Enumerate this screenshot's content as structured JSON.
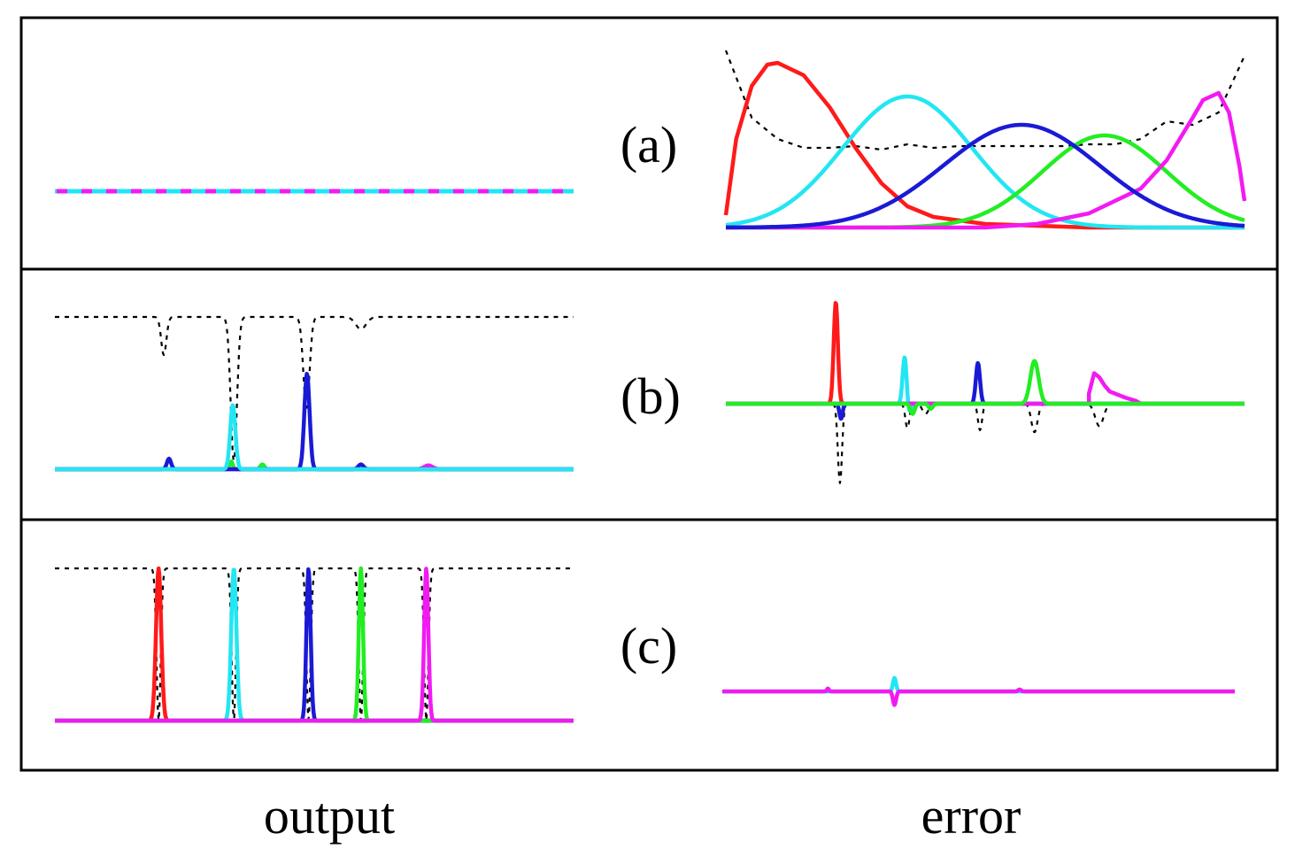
{
  "colors": {
    "red": "#ff1a1a",
    "cyan": "#22e6f2",
    "blue": "#1a1ad6",
    "green": "#22ee22",
    "magenta": "#f21af2",
    "dotted": "#000000",
    "frame": "#000000"
  },
  "labels": {
    "column_left": "output",
    "column_right": "error"
  },
  "chart_data": [
    {
      "type": "line",
      "panel": "(a)",
      "column": "output",
      "grid": false,
      "series": [
        {
          "color": "magenta",
          "style": "dashed",
          "kind": "flat",
          "level": 0.0
        },
        {
          "color": "cyan",
          "style": "dashed",
          "kind": "flat",
          "level": 0.0
        }
      ]
    },
    {
      "type": "line",
      "panel": "(a)",
      "column": "error",
      "grid": false,
      "series": [
        {
          "color": "dotted",
          "style": "dotted",
          "kind": "points",
          "x": [
            0,
            0.05,
            0.1,
            0.15,
            0.2,
            0.25,
            0.3,
            0.35,
            0.4,
            0.45,
            0.5,
            0.55,
            0.6,
            0.65,
            0.7,
            0.75,
            0.8,
            0.85,
            0.9,
            0.95,
            1
          ],
          "y": [
            1.0,
            0.62,
            0.5,
            0.45,
            0.45,
            0.46,
            0.44,
            0.47,
            0.45,
            0.46,
            0.46,
            0.46,
            0.46,
            0.46,
            0.47,
            0.47,
            0.5,
            0.6,
            0.58,
            0.65,
            0.97
          ]
        },
        {
          "color": "red",
          "style": "solid",
          "kind": "points",
          "x": [
            0,
            0.02,
            0.05,
            0.08,
            0.1,
            0.15,
            0.2,
            0.25,
            0.3,
            0.35,
            0.4,
            0.5,
            0.6,
            0.7,
            0.8,
            1
          ],
          "y": [
            0.07,
            0.5,
            0.8,
            0.92,
            0.93,
            0.86,
            0.68,
            0.45,
            0.25,
            0.12,
            0.06,
            0.02,
            0.01,
            0.0,
            0.0,
            0.0
          ]
        },
        {
          "color": "cyan",
          "style": "solid",
          "kind": "gauss",
          "mu": 0.35,
          "sigma": 0.125,
          "amp": 0.74
        },
        {
          "color": "green",
          "style": "solid",
          "kind": "gauss",
          "mu": 0.73,
          "sigma": 0.12,
          "amp": 0.52
        },
        {
          "color": "magenta",
          "style": "solid",
          "kind": "points",
          "x": [
            0,
            0.5,
            0.6,
            0.7,
            0.8,
            0.85,
            0.9,
            0.92,
            0.95,
            0.97,
            0.99,
            1
          ],
          "y": [
            0.0,
            0.0,
            0.02,
            0.08,
            0.22,
            0.38,
            0.62,
            0.72,
            0.76,
            0.65,
            0.35,
            0.15
          ]
        },
        {
          "color": "blue",
          "style": "solid",
          "kind": "gauss",
          "mu": 0.57,
          "sigma": 0.15,
          "amp": 0.58
        }
      ]
    },
    {
      "type": "line",
      "panel": "(b)",
      "column": "output",
      "grid": false,
      "series": [
        {
          "color": "dotted",
          "style": "dotted",
          "kind": "dips",
          "level": 0.0,
          "dips": [
            {
              "mu": 0.21,
              "sigma": 0.005,
              "amp": 0.25
            },
            {
              "mu": 0.345,
              "sigma": 0.006,
              "amp": 0.95
            },
            {
              "mu": 0.485,
              "sigma": 0.006,
              "amp": 0.6
            },
            {
              "mu": 0.59,
              "sigma": 0.01,
              "amp": 0.08
            }
          ]
        },
        {
          "color": "green",
          "style": "solid",
          "kind": "peaks",
          "level": 0.0,
          "peaks": [
            {
              "mu": 0.34,
              "sigma": 0.003,
              "amp": 0.08
            },
            {
              "mu": 0.4,
              "sigma": 0.004,
              "amp": 0.05
            }
          ]
        },
        {
          "color": "magenta",
          "style": "solid",
          "kind": "peaks",
          "level": 0.0,
          "peaks": [
            {
              "mu": 0.72,
              "sigma": 0.008,
              "amp": 0.04
            }
          ]
        },
        {
          "color": "blue",
          "style": "solid",
          "kind": "peaks",
          "level": 0.0,
          "peaks": [
            {
              "mu": 0.22,
              "sigma": 0.004,
              "amp": 0.11
            },
            {
              "mu": 0.486,
              "sigma": 0.005,
              "amp": 1.0
            },
            {
              "mu": 0.59,
              "sigma": 0.005,
              "amp": 0.05
            }
          ]
        },
        {
          "color": "cyan",
          "style": "solid",
          "kind": "peaks",
          "level": 0.0,
          "peaks": [
            {
              "mu": 0.343,
              "sigma": 0.005,
              "amp": 0.67
            }
          ]
        }
      ]
    },
    {
      "type": "line",
      "panel": "(b)",
      "column": "error",
      "grid": false,
      "series": [
        {
          "color": "dotted",
          "style": "dotted",
          "kind": "peaks",
          "level": 0.0,
          "peaks": [
            {
              "mu": 0.22,
              "sigma": 0.004,
              "amp": -0.78
            },
            {
              "mu": 0.35,
              "sigma": 0.004,
              "amp": -0.24
            },
            {
              "mu": 0.385,
              "sigma": 0.006,
              "amp": -0.1
            },
            {
              "mu": 0.49,
              "sigma": 0.004,
              "amp": -0.26
            },
            {
              "mu": 0.595,
              "sigma": 0.006,
              "amp": -0.28
            },
            {
              "mu": 0.72,
              "sigma": 0.008,
              "amp": -0.22
            }
          ]
        },
        {
          "color": "red",
          "style": "solid",
          "kind": "peaks",
          "level": 0.0,
          "peaks": [
            {
              "mu": 0.212,
              "sigma": 0.004,
              "amp": 1.0
            }
          ]
        },
        {
          "color": "blue",
          "style": "solid",
          "kind": "peaks",
          "level": 0.0,
          "peaks": [
            {
              "mu": 0.222,
              "sigma": 0.003,
              "amp": -0.15
            },
            {
              "mu": 0.486,
              "sigma": 0.004,
              "amp": 0.4
            }
          ]
        },
        {
          "color": "cyan",
          "style": "solid",
          "kind": "peaks",
          "level": 0.0,
          "peaks": [
            {
              "mu": 0.345,
              "sigma": 0.004,
              "amp": 0.48
            },
            {
              "mu": 0.352,
              "sigma": 0.004,
              "amp": -0.12
            }
          ]
        },
        {
          "color": "magenta",
          "style": "solid",
          "kind": "points",
          "x": [
            0,
            0.7,
            0.7,
            0.71,
            0.72,
            0.73,
            0.74,
            0.75,
            0.76,
            0.77,
            0.79,
            0.8,
            1
          ],
          "y": [
            0,
            0,
            0.1,
            0.3,
            0.26,
            0.18,
            0.12,
            0.1,
            0.08,
            0.06,
            0.03,
            0,
            0
          ]
        },
        {
          "color": "green",
          "style": "solid",
          "kind": "peaks",
          "level": 0.0,
          "peaks": [
            {
              "mu": 0.595,
              "sigma": 0.008,
              "amp": 0.42
            },
            {
              "mu": 0.36,
              "sigma": 0.004,
              "amp": -0.1
            },
            {
              "mu": 0.395,
              "sigma": 0.004,
              "amp": -0.05
            }
          ]
        }
      ]
    },
    {
      "type": "line",
      "panel": "(c)",
      "column": "output",
      "grid": false,
      "series": [
        {
          "color": "dotted",
          "style": "dotted",
          "kind": "dips",
          "level": 0.0,
          "dips": [
            {
              "mu": 0.2,
              "sigma": 0.004,
              "amp": 1.0
            },
            {
              "mu": 0.345,
              "sigma": 0.004,
              "amp": 1.0
            },
            {
              "mu": 0.489,
              "sigma": 0.004,
              "amp": 1.0
            },
            {
              "mu": 0.59,
              "sigma": 0.004,
              "amp": 1.0
            },
            {
              "mu": 0.716,
              "sigma": 0.004,
              "amp": 1.0
            }
          ]
        },
        {
          "color": "red",
          "style": "solid",
          "kind": "peaks",
          "level": 0.0,
          "peaks": [
            {
              "mu": 0.2,
              "sigma": 0.005,
              "amp": 1.0
            }
          ]
        },
        {
          "color": "cyan",
          "style": "solid",
          "kind": "peaks",
          "level": 0.0,
          "peaks": [
            {
              "mu": 0.345,
              "sigma": 0.005,
              "amp": 1.0
            }
          ]
        },
        {
          "color": "blue",
          "style": "solid",
          "kind": "peaks",
          "level": 0.0,
          "peaks": [
            {
              "mu": 0.489,
              "sigma": 0.004,
              "amp": 1.0
            }
          ]
        },
        {
          "color": "green",
          "style": "solid",
          "kind": "peaks",
          "level": 0.0,
          "peaks": [
            {
              "mu": 0.59,
              "sigma": 0.004,
              "amp": 1.0
            }
          ]
        },
        {
          "color": "magenta",
          "style": "solid",
          "kind": "peaks",
          "level": 0.0,
          "peaks": [
            {
              "mu": 0.716,
              "sigma": 0.004,
              "amp": 1.0
            }
          ]
        }
      ]
    },
    {
      "type": "line",
      "panel": "(c)",
      "column": "error",
      "grid": false,
      "series": [
        {
          "color": "cyan",
          "style": "solid",
          "kind": "peaks",
          "level": 0.0,
          "peaks": [
            {
              "mu": 0.336,
              "sigma": 0.003,
              "amp": 0.55
            }
          ]
        },
        {
          "color": "magenta",
          "style": "solid",
          "kind": "peaks",
          "level": 0.0,
          "peaks": [
            {
              "mu": 0.336,
              "sigma": 0.003,
              "amp": -0.55
            },
            {
              "mu": 0.206,
              "sigma": 0.002,
              "amp": 0.12
            },
            {
              "mu": 0.58,
              "sigma": 0.003,
              "amp": 0.08
            }
          ]
        }
      ]
    }
  ]
}
